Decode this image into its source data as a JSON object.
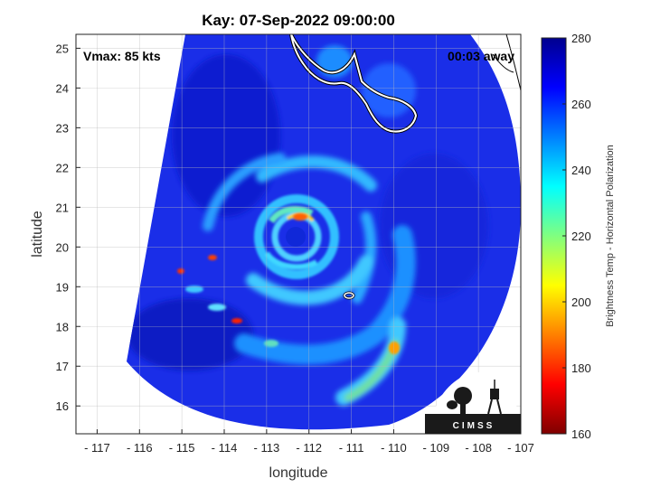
{
  "title": "Kay: 07-Sep-2022 09:00:00",
  "annotations": {
    "vmax": "Vmax: 85 kts",
    "away": "00:03 away"
  },
  "xlabel": "longitude",
  "ylabel": "latitude",
  "xlim": [
    -117.5,
    -107
  ],
  "ylim": [
    15.3,
    25.35
  ],
  "xticks": [
    -117,
    -116,
    -115,
    -114,
    -113,
    -112,
    -111,
    -110,
    -109,
    -108,
    -107
  ],
  "yticks": [
    16,
    17,
    18,
    19,
    20,
    21,
    22,
    23,
    24,
    25
  ],
  "grid": true,
  "storm_center": {
    "lon": -112.3,
    "lat": 20.3
  },
  "colorbar": {
    "label": "Brightness Temp - Horizontal Polarization",
    "min": 160,
    "max": 280,
    "ticks": [
      160,
      180,
      200,
      220,
      240,
      260,
      280
    ],
    "colormap": [
      "#7f0000",
      "#ff0000",
      "#ff8000",
      "#ffff00",
      "#80ff80",
      "#00ffff",
      "#0080ff",
      "#0000ff",
      "#00008f"
    ]
  },
  "logo": {
    "text": "CIMSS"
  }
}
